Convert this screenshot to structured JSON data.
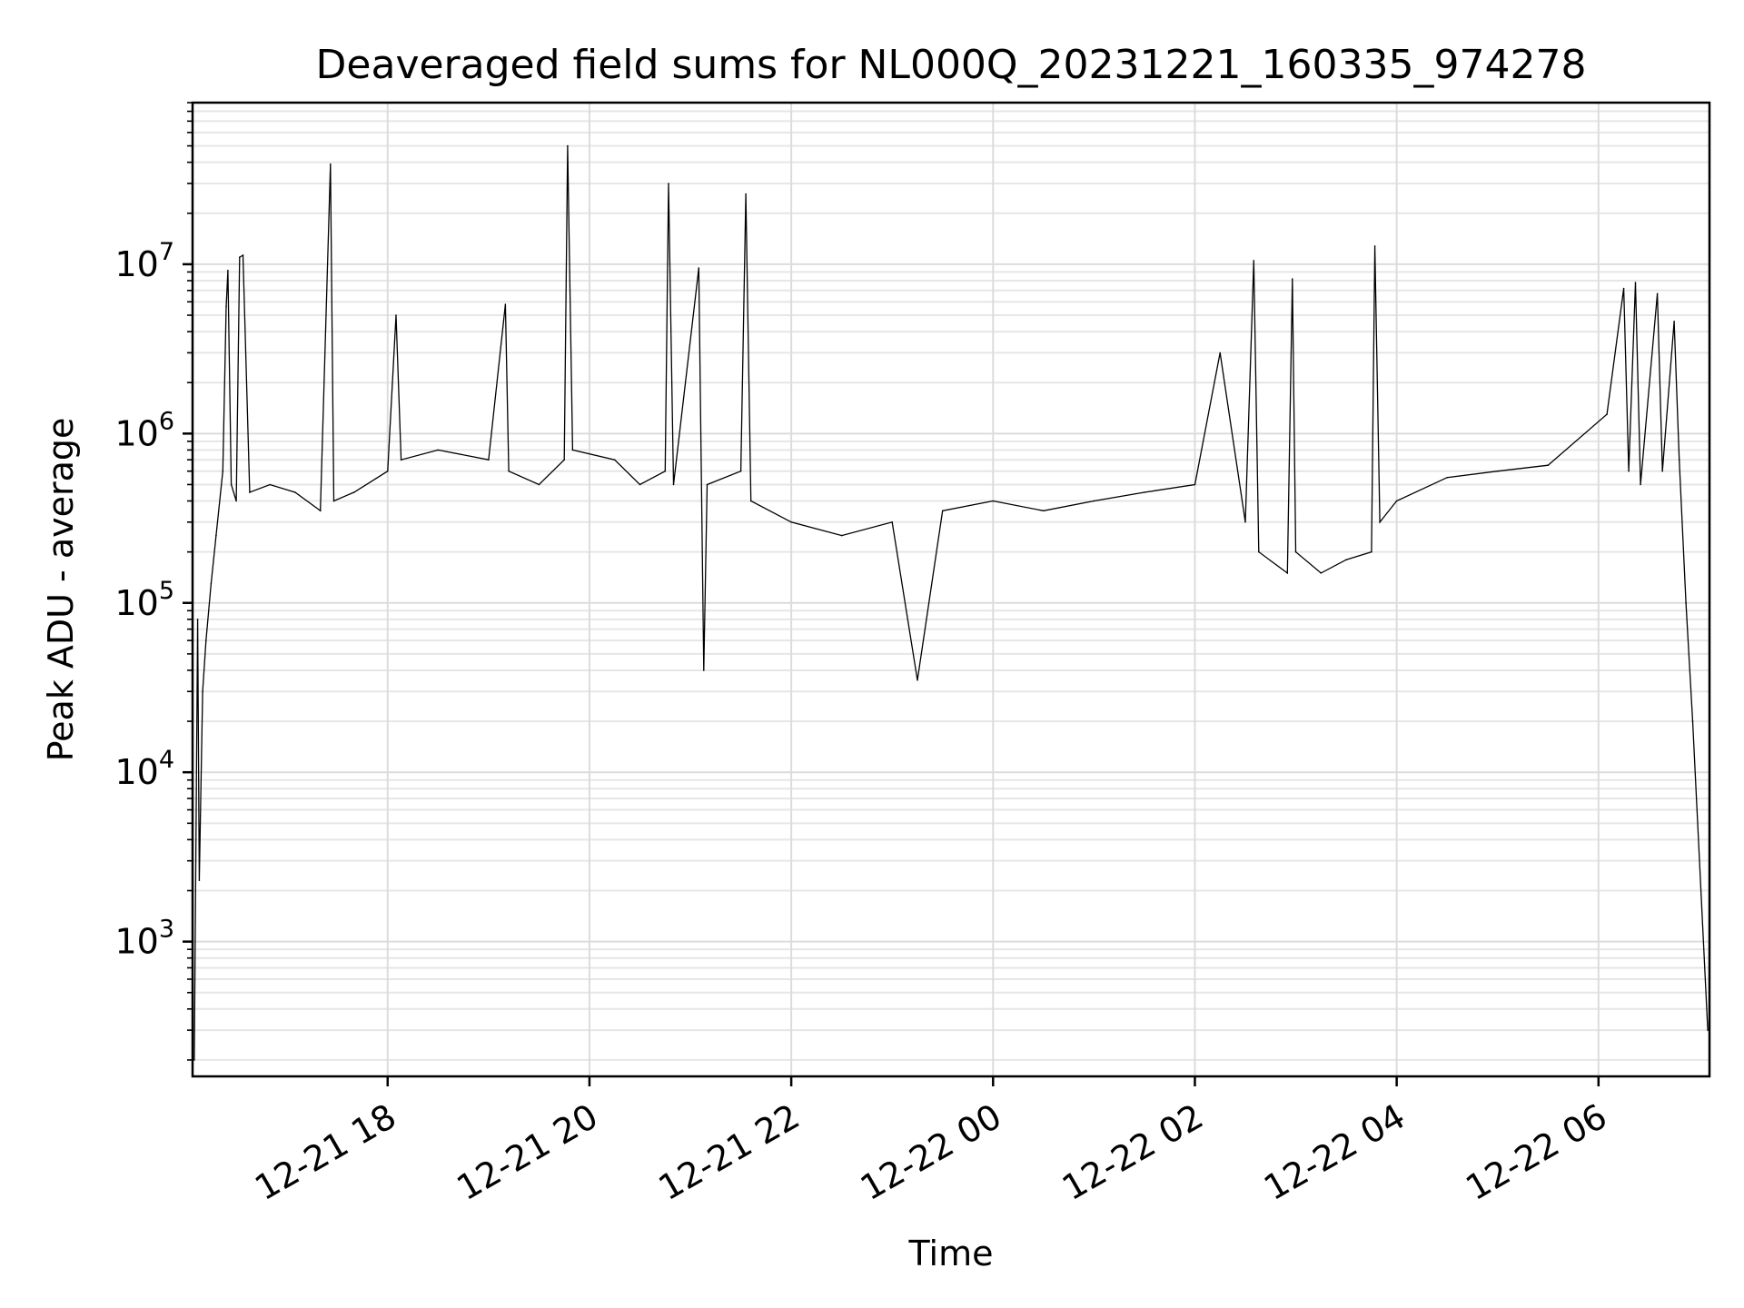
{
  "chart_data": {
    "type": "line",
    "title": "Deaveraged field sums for NL000Q_20231221_160335_974278",
    "xlabel": "Time",
    "ylabel": "Peak ADU - average",
    "yscale": "log",
    "ylim": [
      160,
      90000000
    ],
    "xlim": [
      "2023-12-21 16:04",
      "2023-12-22 07:06"
    ],
    "grid": "on",
    "x_ticks": [
      {
        "value": "2023-12-21 18:00",
        "label": "12-21 18"
      },
      {
        "value": "2023-12-21 20:00",
        "label": "12-21 20"
      },
      {
        "value": "2023-12-21 22:00",
        "label": "12-21 22"
      },
      {
        "value": "2023-12-22 00:00",
        "label": "12-22 00"
      },
      {
        "value": "2023-12-22 02:00",
        "label": "12-22 02"
      },
      {
        "value": "2023-12-22 04:00",
        "label": "12-22 04"
      },
      {
        "value": "2023-12-22 06:00",
        "label": "12-22 06"
      }
    ],
    "y_ticks": [
      {
        "value": 1000,
        "base": "10",
        "exp": "3"
      },
      {
        "value": 10000,
        "base": "10",
        "exp": "4"
      },
      {
        "value": 100000,
        "base": "10",
        "exp": "5"
      },
      {
        "value": 1000000,
        "base": "10",
        "exp": "6"
      },
      {
        "value": 10000000,
        "base": "10",
        "exp": "7"
      }
    ],
    "series": [
      {
        "color": "#000000",
        "points": [
          [
            "2023-12-21 16:05",
            200
          ],
          [
            "2023-12-21 16:07",
            80000
          ],
          [
            "2023-12-21 16:08",
            2300
          ],
          [
            "2023-12-21 16:10",
            30000
          ],
          [
            "2023-12-21 16:12",
            60000
          ],
          [
            "2023-12-21 16:15",
            130000
          ],
          [
            "2023-12-21 16:18",
            250000
          ],
          [
            "2023-12-21 16:22",
            600000
          ],
          [
            "2023-12-21 16:24",
            5600000
          ],
          [
            "2023-12-21 16:25",
            9200000
          ],
          [
            "2023-12-21 16:27",
            500000
          ],
          [
            "2023-12-21 16:30",
            400000
          ],
          [
            "2023-12-21 16:32",
            11000000
          ],
          [
            "2023-12-21 16:34",
            11300000
          ],
          [
            "2023-12-21 16:38",
            450000
          ],
          [
            "2023-12-21 16:50",
            500000
          ],
          [
            "2023-12-21 17:05",
            450000
          ],
          [
            "2023-12-21 17:20",
            350000
          ],
          [
            "2023-12-21 17:26",
            39000000
          ],
          [
            "2023-12-21 17:28",
            400000
          ],
          [
            "2023-12-21 17:40",
            450000
          ],
          [
            "2023-12-21 18:00",
            600000
          ],
          [
            "2023-12-21 18:05",
            5000000
          ],
          [
            "2023-12-21 18:08",
            700000
          ],
          [
            "2023-12-21 18:30",
            800000
          ],
          [
            "2023-12-21 19:00",
            700000
          ],
          [
            "2023-12-21 19:10",
            5800000
          ],
          [
            "2023-12-21 19:12",
            600000
          ],
          [
            "2023-12-21 19:30",
            500000
          ],
          [
            "2023-12-21 19:45",
            700000
          ],
          [
            "2023-12-21 19:47",
            50000000
          ],
          [
            "2023-12-21 19:50",
            800000
          ],
          [
            "2023-12-21 20:15",
            700000
          ],
          [
            "2023-12-21 20:30",
            500000
          ],
          [
            "2023-12-21 20:45",
            600000
          ],
          [
            "2023-12-21 20:47",
            30000000
          ],
          [
            "2023-12-21 20:50",
            500000
          ],
          [
            "2023-12-21 21:05",
            9500000
          ],
          [
            "2023-12-21 21:08",
            40000
          ],
          [
            "2023-12-21 21:10",
            500000
          ],
          [
            "2023-12-21 21:30",
            600000
          ],
          [
            "2023-12-21 21:33",
            26000000
          ],
          [
            "2023-12-21 21:36",
            400000
          ],
          [
            "2023-12-21 22:00",
            300000
          ],
          [
            "2023-12-21 22:30",
            250000
          ],
          [
            "2023-12-21 23:00",
            300000
          ],
          [
            "2023-12-21 23:15",
            35000
          ],
          [
            "2023-12-21 23:30",
            350000
          ],
          [
            "2023-12-22 00:00",
            400000
          ],
          [
            "2023-12-22 00:30",
            350000
          ],
          [
            "2023-12-22 01:00",
            400000
          ],
          [
            "2023-12-22 01:30",
            450000
          ],
          [
            "2023-12-22 02:00",
            500000
          ],
          [
            "2023-12-22 02:15",
            3000000
          ],
          [
            "2023-12-22 02:30",
            300000
          ],
          [
            "2023-12-22 02:35",
            10500000
          ],
          [
            "2023-12-22 02:38",
            200000
          ],
          [
            "2023-12-22 02:55",
            150000
          ],
          [
            "2023-12-22 02:58",
            8200000
          ],
          [
            "2023-12-22 03:00",
            200000
          ],
          [
            "2023-12-22 03:15",
            150000
          ],
          [
            "2023-12-22 03:30",
            180000
          ],
          [
            "2023-12-22 03:45",
            200000
          ],
          [
            "2023-12-22 03:47",
            12800000
          ],
          [
            "2023-12-22 03:50",
            300000
          ],
          [
            "2023-12-22 04:00",
            400000
          ],
          [
            "2023-12-22 04:30",
            550000
          ],
          [
            "2023-12-22 05:00",
            600000
          ],
          [
            "2023-12-22 05:30",
            650000
          ],
          [
            "2023-12-22 06:05",
            1300000
          ],
          [
            "2023-12-22 06:15",
            7200000
          ],
          [
            "2023-12-22 06:18",
            600000
          ],
          [
            "2023-12-22 06:22",
            7800000
          ],
          [
            "2023-12-22 06:25",
            500000
          ],
          [
            "2023-12-22 06:35",
            6700000
          ],
          [
            "2023-12-22 06:38",
            600000
          ],
          [
            "2023-12-22 06:45",
            4600000
          ],
          [
            "2023-12-22 06:48",
            700000
          ],
          [
            "2023-12-22 06:52",
            100000
          ],
          [
            "2023-12-22 06:56",
            20000
          ],
          [
            "2023-12-22 07:05",
            300
          ]
        ]
      }
    ]
  }
}
